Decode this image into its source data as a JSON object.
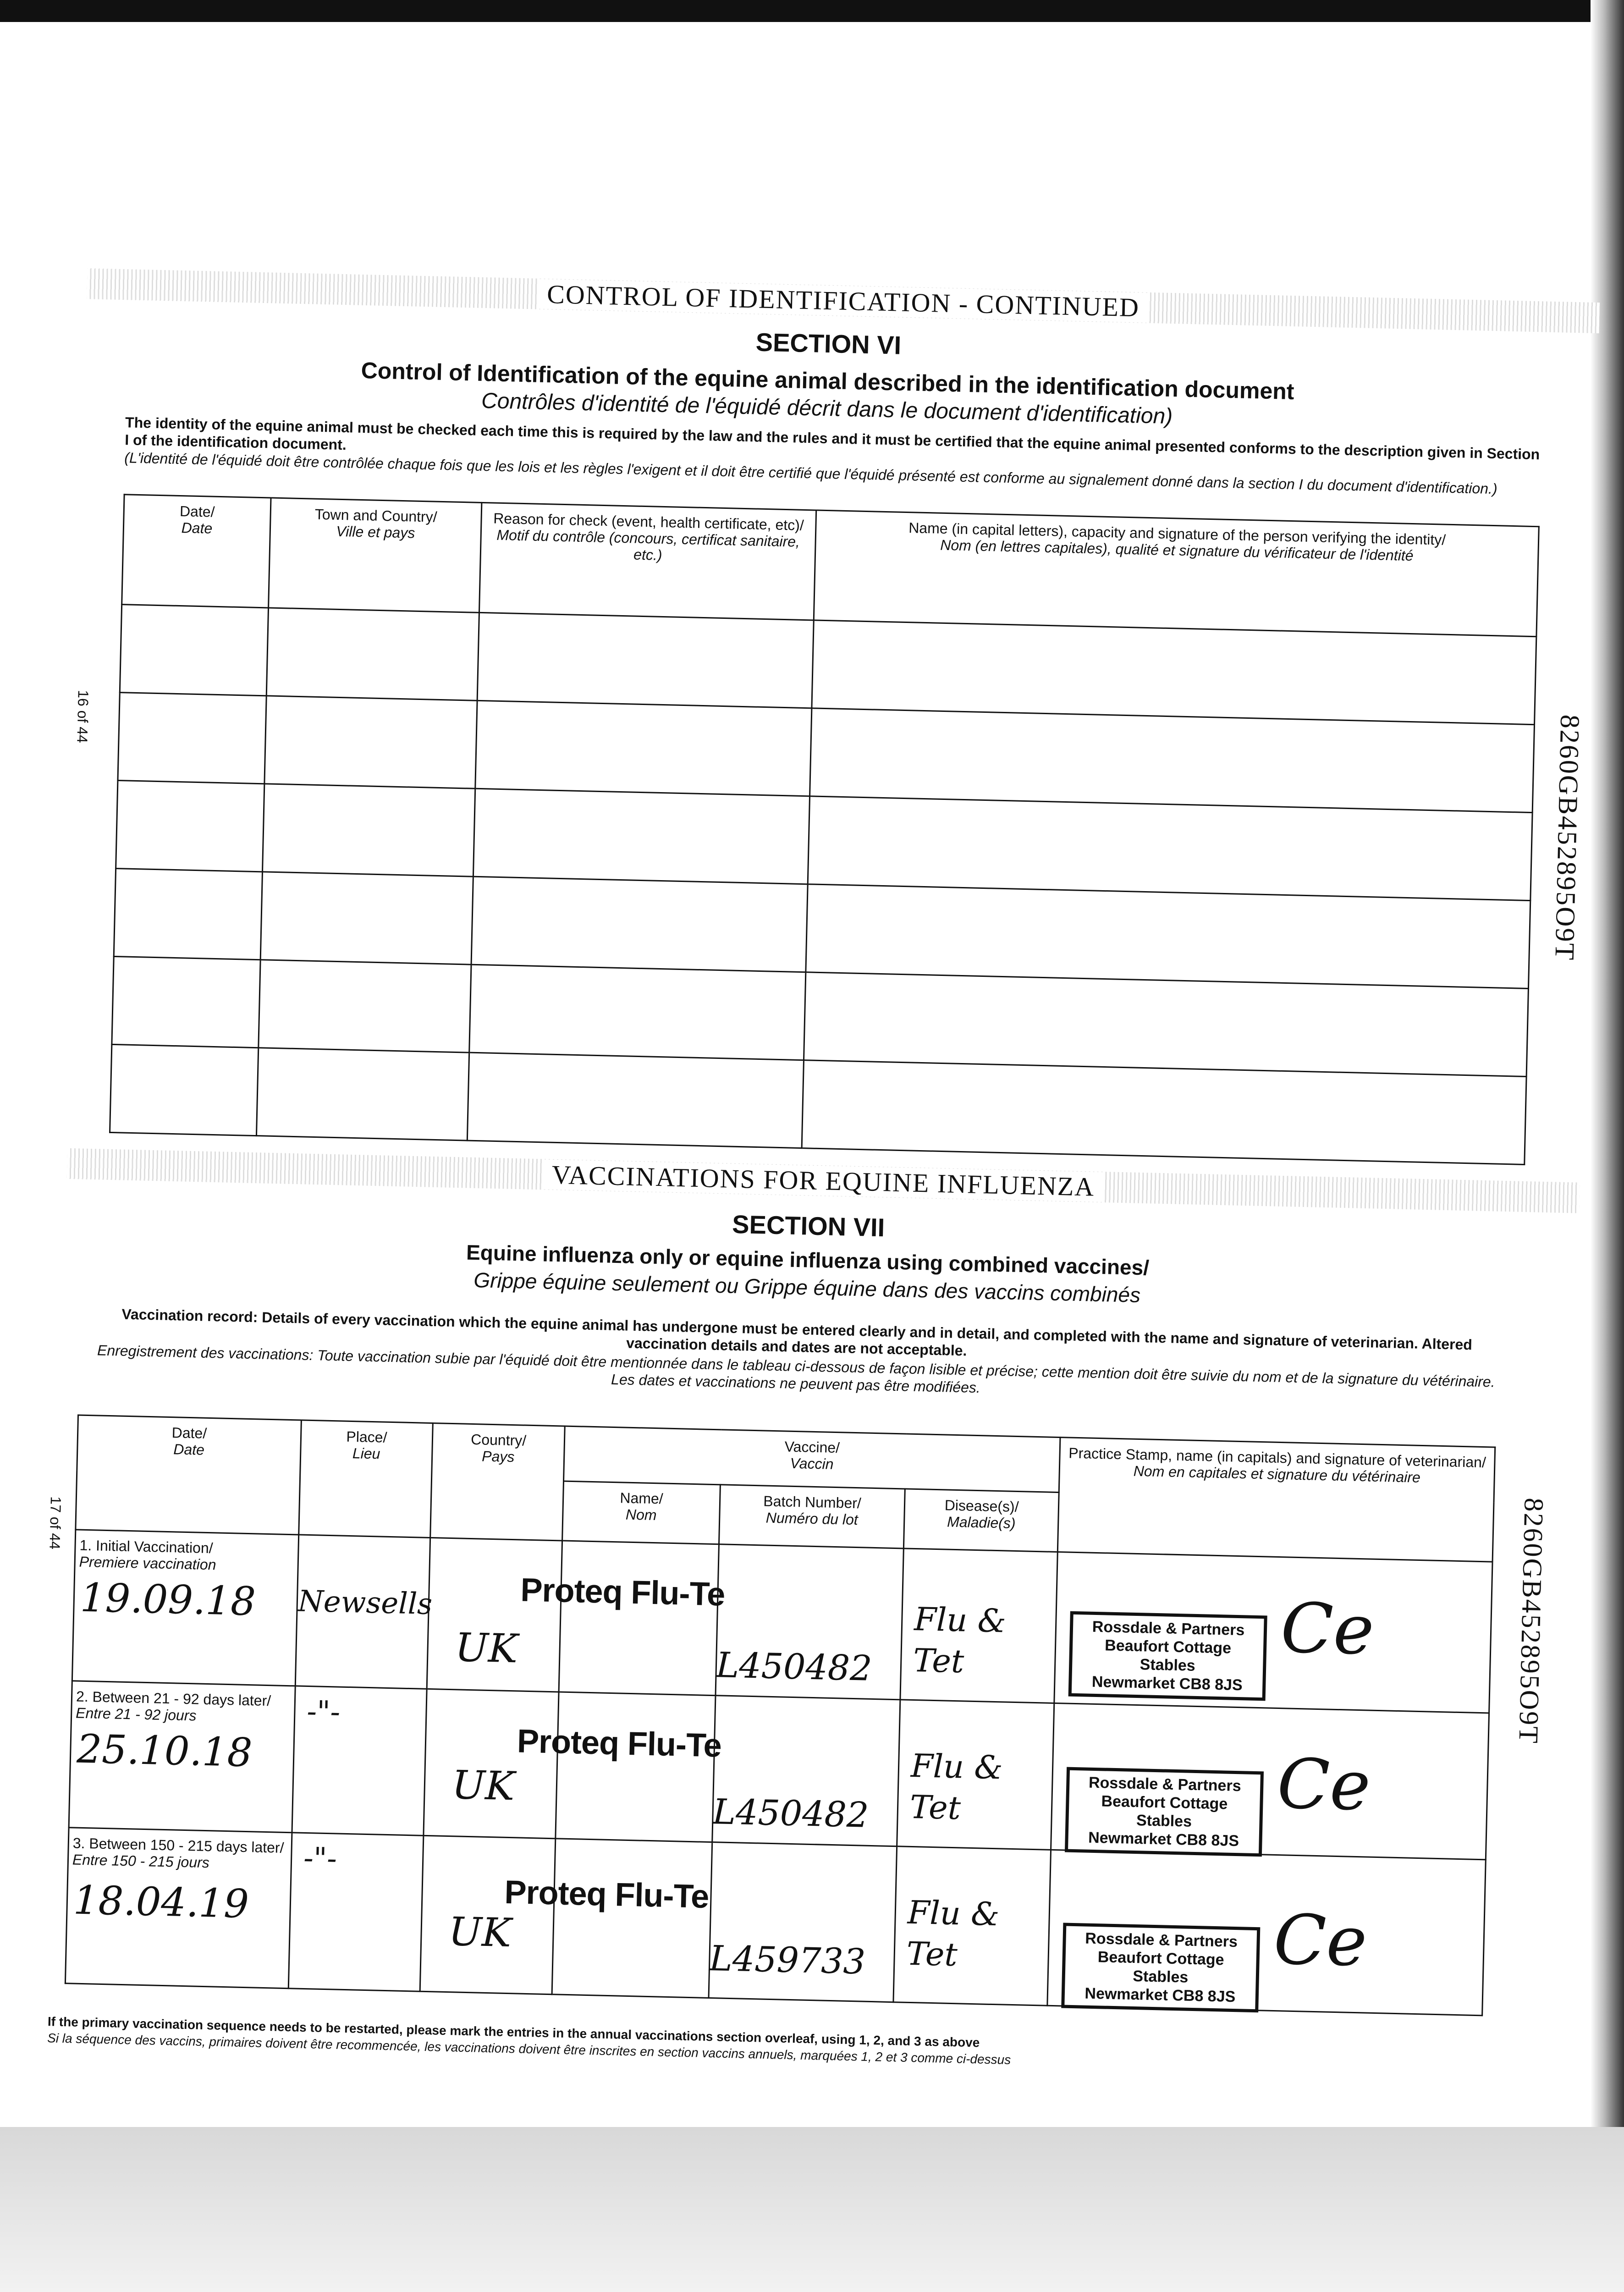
{
  "section6": {
    "banner": "CONTROL OF IDENTIFICATION - CONTINUED",
    "section": "SECTION VI",
    "title": "Control of Identification of the equine animal described in the identification document",
    "title_fr": "Contrôles d'identité de l'équidé décrit dans le document d'identification)",
    "intro": "The identity of the equine animal must be checked each time this is required by the law and the rules and it must be certified that the equine animal presented conforms to the description given in Section I of the identification document.",
    "intro_fr": "(L'identité de l'équidé doit être contrôlée chaque fois que les lois et les règles l'exigent et il doit être certifié que l'équidé présenté est conforme au signalement donné dans la section I du document d'identification.)",
    "columns": [
      {
        "en": "Date/",
        "fr": "Date"
      },
      {
        "en": "Town and Country/",
        "fr": "Ville et pays"
      },
      {
        "en": "Reason for check (event, health certificate, etc)/",
        "fr": "Motif du contrôle (concours, certificat sanitaire, etc.)"
      },
      {
        "en": "Name (in capital letters), capacity and signature of the person verifying the identity/",
        "fr": "Nom (en lettres capitales), qualité et signature du vérificateur de l'identité"
      }
    ],
    "page_number": "16 of 44"
  },
  "section7": {
    "banner": "VACCINATIONS FOR EQUINE INFLUENZA",
    "section": "SECTION VII",
    "title": "Equine influenza only or equine influenza using combined vaccines/",
    "title_fr": "Grippe équine seulement ou Grippe équine dans des vaccins combinés",
    "intro": "Vaccination record: Details of every vaccination which the equine animal has undergone must be entered clearly and in detail, and completed with the name and signature of veterinarian. Altered vaccination details and dates are not acceptable.",
    "intro_fr": "Enregistrement des vaccinations: Toute vaccination subie par l'équidé doit être mentionnée dans le tableau ci-dessous de façon lisible et précise; cette mention doit être suivie du nom et de la signature du vétérinaire. Les dates et vaccinations ne peuvent pas être modifiées.",
    "columns": {
      "date": {
        "en": "Date/",
        "fr": "Date"
      },
      "place": {
        "en": "Place/",
        "fr": "Lieu"
      },
      "country": {
        "en": "Country/",
        "fr": "Pays"
      },
      "vaccine": {
        "en": "Vaccine/",
        "fr": "Vaccin"
      },
      "name": {
        "en": "Name/",
        "fr": "Nom"
      },
      "batch": {
        "en": "Batch Number/",
        "fr": "Numéro du lot"
      },
      "disease": {
        "en": "Disease(s)/",
        "fr": "Maladie(s)"
      },
      "stamp": {
        "en": "Practice Stamp, name (in capitals) and signature of veterinarian/",
        "fr": "Nom en capitales et signature du vétérinaire"
      }
    },
    "rows": [
      {
        "label": "1. Initial Vaccination/",
        "label_fr": "Premiere vaccination",
        "date": "19.09.18",
        "place": "Newsells",
        "country": "UK",
        "vaccine": "Proteq Flu-Te",
        "batch": "L450482",
        "disease": "Flu & Tet"
      },
      {
        "label": "2. Between 21 - 92 days later/",
        "label_fr": "Entre 21 - 92 jours",
        "date": "25.10.18",
        "place": "-\"-",
        "country": "UK",
        "vaccine": "Proteq Flu-Te",
        "batch": "L450482",
        "disease": "Flu & Tet"
      },
      {
        "label": "3. Between 150 - 215 days later/",
        "label_fr": "Entre 150 - 215 jours",
        "date": "18.04.19",
        "place": "-\"-",
        "country": "UK",
        "vaccine": "Proteq Flu-Te",
        "batch": "L459733",
        "disease": "Flu & Tet"
      }
    ],
    "stamp": [
      "Rossdale & Partners",
      "Beaufort Cottage Stables",
      "Newmarket CB8 8JS"
    ],
    "signature": "Ce",
    "footnote": "If the primary vaccination sequence needs to be restarted, please mark the entries in the annual vaccinations section overleaf, using 1, 2, and 3 as above",
    "footnote_fr": "Si la séquence des vaccins, primaires doivent être recommencée, les vaccinations doivent être inscrites en section vaccins annuels, marquées 1, 2 et 3 comme ci-dessus",
    "page_number": "17 of 44"
  },
  "document_id": "8260GB452895O9T"
}
